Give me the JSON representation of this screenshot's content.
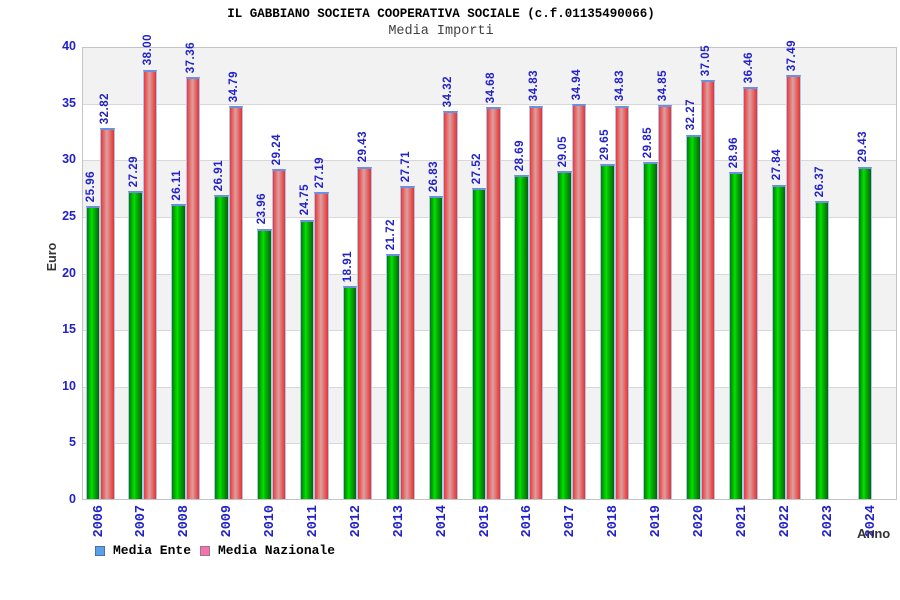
{
  "title": "IL GABBIANO SOCIETA COOPERATIVA SOCIALE (c.f.01135490066)",
  "subtitle": "Media Importi",
  "chart_data": {
    "type": "bar",
    "title": "Media Importi",
    "xlabel": "Anno",
    "ylabel": "Euro",
    "ylim": [
      0,
      40
    ],
    "yticks": [
      0,
      5,
      10,
      15,
      20,
      25,
      30,
      35,
      40
    ],
    "grid": "alternating-horizontal-bands",
    "legend_position": "bottom",
    "categories": [
      "2006",
      "2007",
      "2008",
      "2009",
      "2010",
      "2011",
      "2012",
      "2013",
      "2014",
      "2015",
      "2016",
      "2017",
      "2018",
      "2019",
      "2020",
      "2021",
      "2022",
      "2023",
      "2024"
    ],
    "series": [
      {
        "name": "Media Ente",
        "values": [
          25.96,
          27.29,
          26.11,
          26.91,
          23.96,
          24.75,
          18.91,
          21.72,
          26.83,
          27.52,
          28.69,
          29.05,
          29.65,
          29.85,
          32.27,
          28.96,
          27.84,
          26.37,
          29.43
        ]
      },
      {
        "name": "Media Nazionale",
        "values": [
          32.82,
          38.0,
          37.36,
          34.79,
          29.24,
          27.19,
          29.43,
          27.71,
          34.32,
          34.68,
          34.83,
          34.94,
          34.83,
          34.85,
          37.05,
          36.46,
          37.49,
          null,
          null
        ]
      }
    ]
  },
  "colors": {
    "label_blue": "#2222c8",
    "band_gray": "#f2f2f2",
    "band_white": "#ffffff",
    "grid_line": "#d8d8d8",
    "plot_border": "#c4c4c4",
    "bar_green_edge": "#097709",
    "bar_green_center": "#00e400",
    "bar_red_edge": "#f03636",
    "bar_red_center": "#dba0a0",
    "bar_highlight": "#6e8ede",
    "legend_ente_fill": "#5aa0e6",
    "legend_ente_border": "#4d6fa8",
    "legend_nazionale_fill": "#f472ae",
    "legend_nazionale_border": "#9c7586"
  }
}
